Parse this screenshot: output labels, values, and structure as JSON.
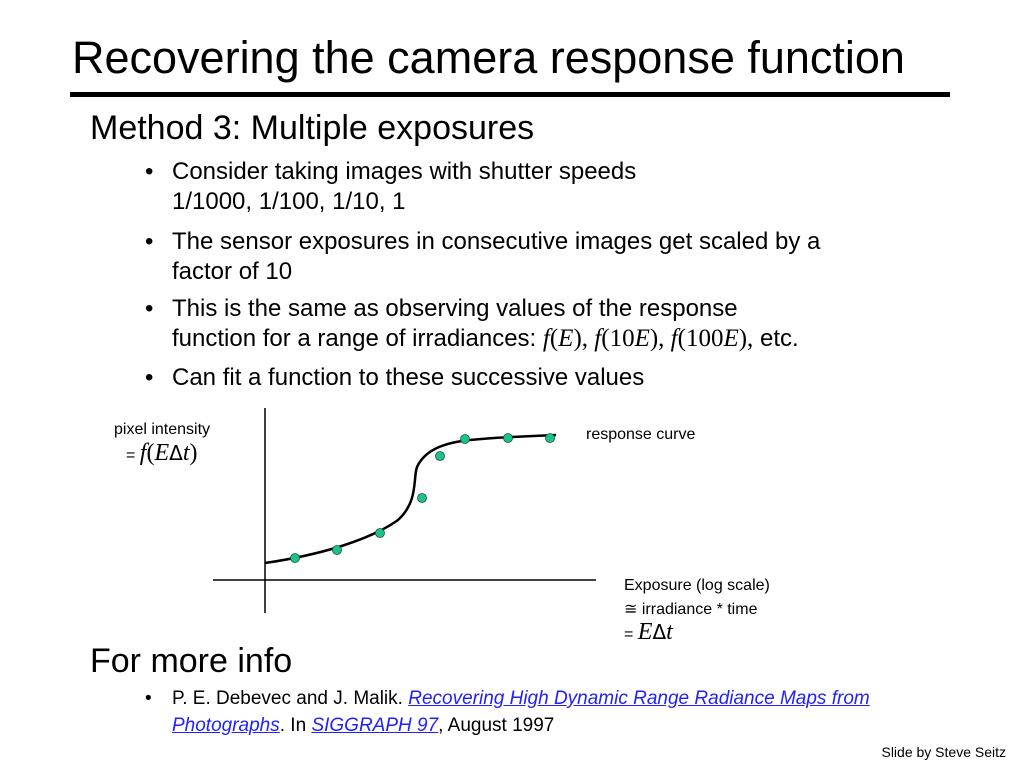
{
  "slide": {
    "title": "Recovering the camera response function",
    "method_heading": "Method 3: Multiple exposures",
    "bullets": [
      {
        "line1": "Consider taking images with shutter speeds",
        "line2": "1/1000, 1/100, 1/10, 1"
      },
      {
        "line1": "The sensor exposures in consecutive images get scaled by a",
        "line2": "factor of 10"
      },
      {
        "line1": "This is the same as observing values of the response",
        "line2_prefix": "function for a range of irradiances:",
        "math": {
          "f1": "f",
          "e1": "E",
          "f2": "f",
          "n2": "10",
          "e2": "E",
          "f3": "f",
          "n3": "100",
          "e3": "E"
        },
        "line2_suffix": "etc."
      },
      {
        "line1": "Can fit a function to these successive values"
      }
    ],
    "bullet_glyph": "•",
    "more_info_heading": "For more info",
    "reference": {
      "authors": "P. E. Debevec and J. Malik.",
      "paper_title_line1": "Recovering High Dynamic Range Radiance",
      "paper_title_line2": "Maps from Photographs",
      "in_text": ". In",
      "venue": "SIGGRAPH 97",
      "date": ", August 1997"
    },
    "credit": "Slide by Steve Seitz"
  },
  "diagram": {
    "y_label": "pixel intensity",
    "y_eq": "=",
    "y_math": {
      "f": "f",
      "e": "E",
      "delta": "Δ",
      "t": "t"
    },
    "curve_label": "response curve",
    "x_label_line1": "Exposure (log scale)",
    "x_label_line2_symbol": "≅",
    "x_label_line2": "irradiance * time",
    "x_eq": "=",
    "x_math": {
      "e": "E",
      "delta": "Δ",
      "t": "t"
    },
    "point_color": "#1fc08c",
    "link_color": "#1f1fff"
  }
}
